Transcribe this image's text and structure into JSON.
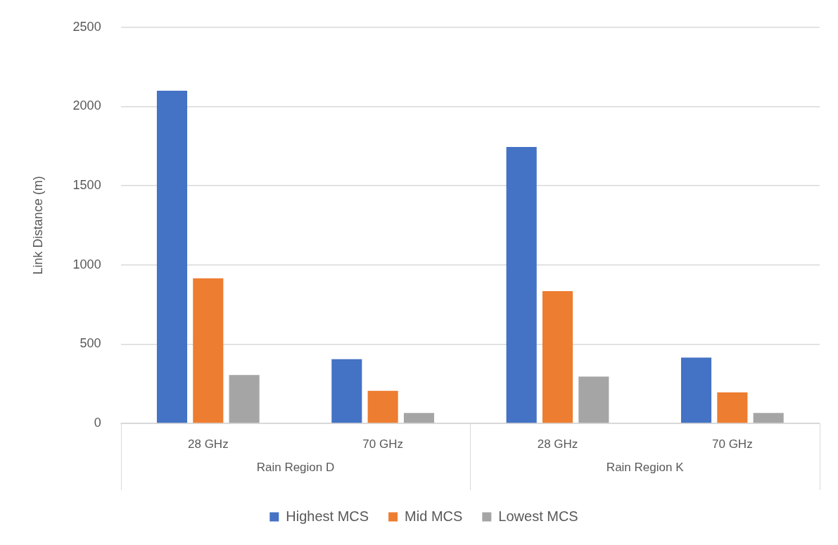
{
  "chart_data": {
    "type": "bar",
    "ylabel": "Link Distance (m)",
    "categories": [
      "28 GHz",
      "70 GHz",
      "28 GHz",
      "70 GHz"
    ],
    "series": [
      {
        "name": "Highest MCS",
        "color": "#4472c4",
        "values": [
          2100,
          405,
          1745,
          415
        ]
      },
      {
        "name": "Mid MCS",
        "color": "#ed7d31",
        "values": [
          915,
          205,
          835,
          195
        ]
      },
      {
        "name": "Lowest MCS",
        "color": "#a5a5a5",
        "values": [
          305,
          65,
          295,
          65
        ]
      }
    ],
    "ylim": [
      0,
      2500
    ],
    "yticks": [
      0,
      500,
      1000,
      1500,
      2000,
      2500
    ],
    "grid": "y",
    "legend": "bottom",
    "annotations": [
      "Rain Region D",
      "Rain Region K"
    ]
  }
}
